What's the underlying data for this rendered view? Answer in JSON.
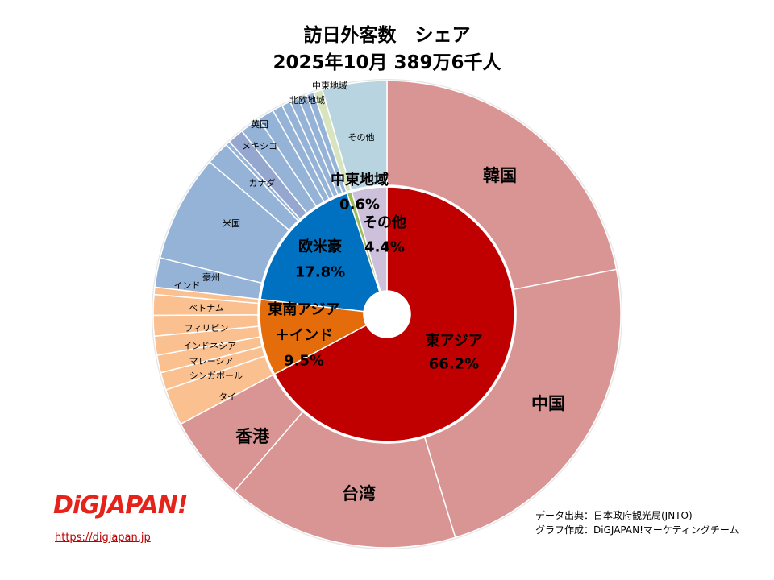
{
  "title_line1": "訪日外客数　シェア",
  "title_line2": "2025年10月 389万6千人",
  "chart_data": {
    "type": "pie",
    "subtype": "double-donut",
    "title": "訪日外客数　シェア 2025年10月 389万6千人",
    "unit": "%",
    "start": "top, clockwise",
    "inner": [
      {
        "name": "東アジア",
        "value": 66.2,
        "value_label": "66.2%",
        "color": "#C00000"
      },
      {
        "name": "東南アジア＋インド",
        "name_lines": [
          "東南アジア",
          "＋インド"
        ],
        "value": 9.5,
        "value_label": "9.5%",
        "color": "#E46C0A"
      },
      {
        "name": "欧米豪",
        "value": 17.8,
        "value_label": "17.8%",
        "color": "#0070C0"
      },
      {
        "name": "中東地域",
        "value": 0.6,
        "value_label": "0.6%",
        "color": "#9BBB59"
      },
      {
        "name": "その他",
        "value": 4.4,
        "value_label": "4.4%",
        "color": "#CCC0DA"
      }
    ],
    "outer": [
      {
        "name": "韓国",
        "value": 21.6,
        "color": "#D99594",
        "size": "big"
      },
      {
        "name": "中国",
        "value": 23.0,
        "color": "#D99594",
        "size": "big"
      },
      {
        "name": "台湾",
        "value": 15.8,
        "color": "#D99594",
        "size": "big"
      },
      {
        "name": "香港",
        "value": 5.8,
        "color": "#D99594",
        "size": "big"
      },
      {
        "name": "タイ",
        "value": 2.5,
        "color": "#FAC090"
      },
      {
        "name": "シンガポール",
        "value": 1.2,
        "color": "#FAC090"
      },
      {
        "name": "マレーシア",
        "value": 1.2,
        "color": "#FAC090"
      },
      {
        "name": "インドネシア",
        "value": 1.3,
        "color": "#FAC090"
      },
      {
        "name": "フィリピン",
        "value": 1.4,
        "color": "#FAC090"
      },
      {
        "name": "ベトナム",
        "value": 1.4,
        "color": "#FAC090"
      },
      {
        "name": "インド",
        "value": 0.5,
        "color": "#FAC090"
      },
      {
        "name": "豪州",
        "value": 2.0,
        "color": "#95B3D7"
      },
      {
        "name": "米国",
        "value": 7.3,
        "color": "#95B3D7"
      },
      {
        "name": "カナダ",
        "value": 1.6,
        "color": "#95B3D7"
      },
      {
        "name": "メキシコ",
        "value": 0.3,
        "color": "#95B3D7"
      },
      {
        "name": "英国",
        "value": 1.1,
        "color": "#95A7CF"
      },
      {
        "name": "",
        "value": 1.4,
        "color": "#95B3D7"
      },
      {
        "name": "",
        "value": 1.1,
        "color": "#95B3D7"
      },
      {
        "name": "",
        "value": 0.7,
        "color": "#95B3D7"
      },
      {
        "name": "",
        "value": 0.6,
        "color": "#95B3D7"
      },
      {
        "name": "",
        "value": 0.6,
        "color": "#95B3D7"
      },
      {
        "name": "",
        "value": 0.6,
        "color": "#95B3D7"
      },
      {
        "name": "北欧地域",
        "value": 0.5,
        "color": "#95B3D7"
      },
      {
        "name": "中東地域",
        "value": 0.6,
        "color": "#D7E4BD"
      },
      {
        "name": "その他",
        "value": 4.4,
        "color": "#B7D4E0"
      }
    ]
  },
  "credits": {
    "source": "データ出典：日本政府観光局(JNTO)",
    "author": "グラフ作成：DiGJAPAN!マーケティングチーム"
  },
  "logo": {
    "text": "DiGJAPAN!",
    "url": "https://digjapan.jp"
  }
}
